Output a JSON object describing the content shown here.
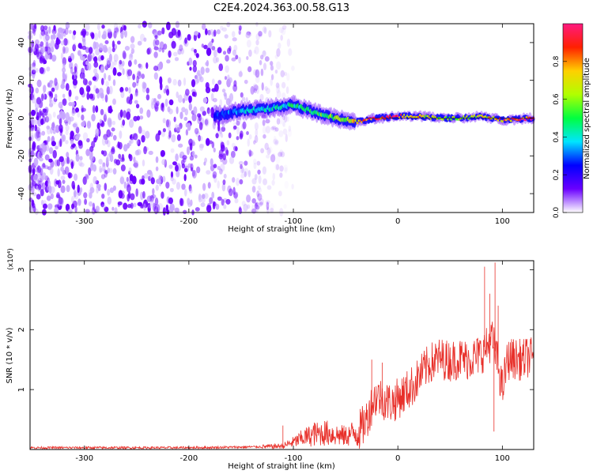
{
  "figure": {
    "title": "C2E4.2024.363.00.58.G13"
  },
  "chart_data": [
    {
      "type": "heatmap",
      "xlabel": "Height of straight line (km)",
      "ylabel": "Frequency (Hz)",
      "xlim": [
        -352,
        130
      ],
      "ylim": [
        -50,
        50
      ],
      "x_ticks": [
        -300,
        -200,
        -100,
        0,
        100
      ],
      "y_ticks": [
        -40,
        -20,
        0,
        20,
        40
      ],
      "colorbar": {
        "label": "Normalized spectral amplitude",
        "range": [
          0,
          1
        ],
        "ticks": [
          0.0,
          0.2,
          0.4,
          0.6,
          0.8
        ],
        "colormap": [
          "#ffffff",
          "#6a00ff",
          "#0000ff",
          "#00e5ff",
          "#00ff40",
          "#b0ff00",
          "#ffd000",
          "#ff2000",
          "#ff1a80"
        ]
      },
      "ridge": {
        "description": "Strong signal centered near 0 Hz",
        "x": [
          -175,
          -150,
          -125,
          -100,
          -80,
          -60,
          -40,
          -20,
          0,
          20,
          40,
          60,
          80,
          100,
          130
        ],
        "y": [
          1,
          4,
          5,
          7,
          3,
          0,
          -2,
          0,
          1,
          1,
          0,
          0,
          1,
          -1,
          0
        ],
        "amplitude": [
          0.25,
          0.35,
          0.4,
          0.45,
          0.5,
          0.55,
          0.7,
          0.9,
          0.85,
          0.7,
          0.6,
          0.6,
          0.65,
          0.8,
          0.95
        ]
      },
      "noise_region": {
        "x_range": [
          -352,
          -140
        ],
        "amplitude": 0.05
      }
    },
    {
      "type": "line",
      "xlabel": "Height of straight line (km)",
      "ylabel": "SNR (10 * v/v)",
      "y_multiplier": "(x10⁴)",
      "xlim": [
        -352,
        130
      ],
      "ylim": [
        0,
        3.15
      ],
      "x_ticks": [
        -300,
        -200,
        -100,
        0,
        100
      ],
      "y_ticks": [
        1,
        2,
        3
      ],
      "color": "#e8302a",
      "series": [
        {
          "x": [
            -352,
            -300,
            -250,
            -200,
            -150,
            -120,
            -110,
            -100,
            -90,
            -80,
            -70,
            -60,
            -50,
            -40,
            -35,
            -30,
            -25,
            -20,
            -15,
            -10,
            -5,
            0,
            5,
            10,
            15,
            20,
            25,
            30,
            35,
            40,
            45,
            50,
            55,
            60,
            65,
            70,
            75,
            80,
            85,
            90,
            95,
            100,
            105,
            110,
            115,
            120,
            125,
            130
          ],
          "values": [
            0.03,
            0.03,
            0.03,
            0.03,
            0.04,
            0.05,
            0.06,
            0.12,
            0.2,
            0.25,
            0.28,
            0.25,
            0.22,
            0.3,
            0.35,
            0.5,
            0.75,
            0.9,
            0.85,
            0.8,
            0.78,
            0.85,
            0.92,
            1.0,
            1.08,
            1.2,
            1.32,
            1.42,
            1.48,
            1.52,
            1.5,
            1.48,
            1.5,
            1.52,
            1.5,
            1.52,
            1.55,
            1.6,
            1.7,
            1.85,
            1.5,
            1.0,
            1.5,
            1.52,
            1.5,
            1.5,
            1.55,
            1.5
          ]
        }
      ],
      "spikes": [
        {
          "x": -110,
          "value": 0.4
        },
        {
          "x": -80,
          "value": 0.45
        },
        {
          "x": -25,
          "value": 1.5
        },
        {
          "x": -15,
          "value": 1.45
        },
        {
          "x": 83,
          "value": 3.05
        },
        {
          "x": 88,
          "value": 2.6
        },
        {
          "x": 93,
          "value": 3.12
        },
        {
          "x": 96,
          "value": 2.4
        },
        {
          "x": 92,
          "value": 0.3
        }
      ]
    }
  ]
}
